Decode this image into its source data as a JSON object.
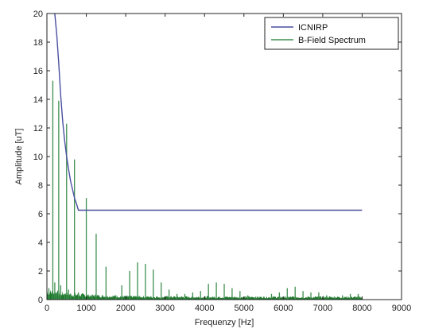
{
  "chart_data": {
    "type": "line",
    "xlabel": "Frequenzy [Hz]",
    "ylabel": "Amplitude [uT]",
    "xlim": [
      0,
      9000
    ],
    "ylim": [
      0,
      20
    ],
    "x_ticks": [
      0,
      1000,
      2000,
      3000,
      4000,
      5000,
      6000,
      7000,
      8000,
      9000
    ],
    "y_ticks": [
      0,
      2,
      4,
      6,
      8,
      10,
      12,
      14,
      16,
      18,
      20
    ],
    "legend_position": "top-right",
    "grid": false,
    "series": [
      {
        "name": "ICNIRP",
        "kind": "line",
        "color": "#4a4fa0",
        "x": [
          200,
          250,
          300,
          350,
          400,
          450,
          500,
          550,
          600,
          650,
          700,
          750,
          800,
          1000,
          2000,
          3000,
          4000,
          5000,
          6000,
          7000,
          8000
        ],
        "y": [
          20,
          18.5,
          16.5,
          14.3,
          12.5,
          11.1,
          10.0,
          9.1,
          8.3,
          7.7,
          7.1,
          6.7,
          6.25,
          6.25,
          6.25,
          6.25,
          6.25,
          6.25,
          6.25,
          6.25,
          6.25
        ]
      },
      {
        "name": "B-Field Spectrum",
        "kind": "stem",
        "color": "#3f8f4f",
        "x": [
          50,
          150,
          200,
          250,
          300,
          350,
          450,
          500,
          550,
          600,
          700,
          800,
          900,
          1000,
          1150,
          1250,
          1500,
          1750,
          1900,
          2100,
          2300,
          2500,
          2700,
          2900,
          3100,
          3300,
          3500,
          3700,
          3900,
          4100,
          4300,
          4500,
          4700,
          4900,
          5100,
          5300,
          5700,
          5900,
          6100,
          6300,
          6500,
          6700,
          6900,
          7100,
          7300,
          7500,
          7700,
          7900
        ],
        "y": [
          0.8,
          15.3,
          1.2,
          0.5,
          13.9,
          1.0,
          0.4,
          12.3,
          0.7,
          0.3,
          9.8,
          0.5,
          0.3,
          7.1,
          0.3,
          4.6,
          2.3,
          0.3,
          1.0,
          2.0,
          2.6,
          2.5,
          2.1,
          1.2,
          0.7,
          0.4,
          0.4,
          0.5,
          0.6,
          1.1,
          1.2,
          1.1,
          0.8,
          0.6,
          0.3,
          0.2,
          0.4,
          0.5,
          0.8,
          0.9,
          0.6,
          0.5,
          0.5,
          0.3,
          0.2,
          0.3,
          0.4,
          0.4
        ]
      }
    ]
  }
}
